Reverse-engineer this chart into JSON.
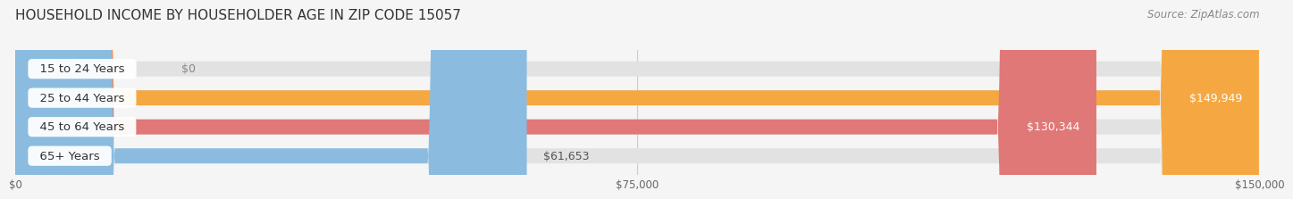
{
  "title": "HOUSEHOLD INCOME BY HOUSEHOLDER AGE IN ZIP CODE 15057",
  "source": "Source: ZipAtlas.com",
  "categories": [
    "15 to 24 Years",
    "25 to 44 Years",
    "45 to 64 Years",
    "65+ Years"
  ],
  "values": [
    0,
    149949,
    130344,
    61653
  ],
  "max_value": 150000,
  "bar_colors": [
    "#F8A0B0",
    "#F5A842",
    "#E07878",
    "#8BBCDF"
  ],
  "value_labels": [
    "$0",
    "$149,949",
    "$130,344",
    "$61,653"
  ],
  "x_ticks": [
    0,
    75000,
    150000
  ],
  "x_tick_labels": [
    "$0",
    "$75,000",
    "$150,000"
  ],
  "background_color": "#f5f5f5",
  "bar_background": "#e2e2e2",
  "title_fontsize": 11,
  "source_fontsize": 8.5,
  "label_fontsize": 9.5,
  "value_fontsize": 9,
  "bar_height": 0.52
}
